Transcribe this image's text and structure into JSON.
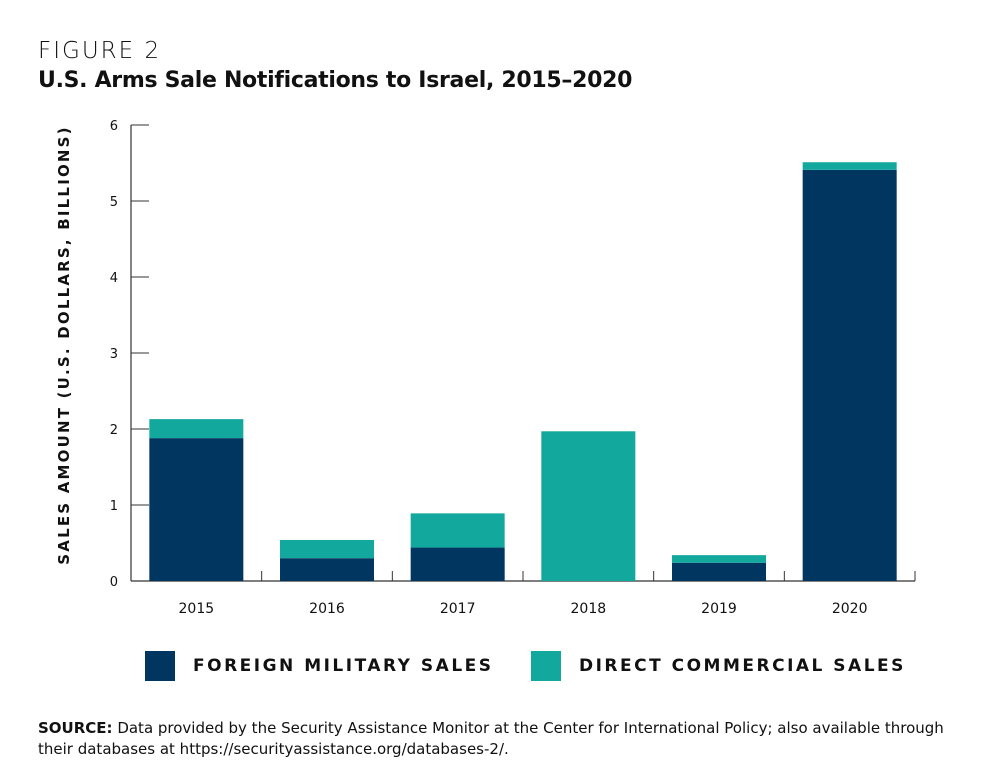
{
  "figure_label": "FIGURE 2",
  "chart_data": {
    "type": "bar",
    "stacked": true,
    "title": "U.S. Arms Sale Notifications to Israel, 2015–2020",
    "xlabel": "",
    "ylabel": "SALES AMOUNT (U.S. DOLLARS, BILLIONS)",
    "ylim": [
      0,
      6
    ],
    "yticks": [
      "0",
      "1",
      "2",
      "3",
      "4",
      "5",
      "6"
    ],
    "categories": [
      "2015",
      "2016",
      "2017",
      "2018",
      "2019",
      "2020"
    ],
    "series": [
      {
        "name": "FOREIGN MILITARY SALES",
        "color": "#003660",
        "values": [
          1.88,
          0.3,
          0.44,
          0,
          0.24,
          5.41
        ]
      },
      {
        "name": "DIRECT COMMERCIAL SALES",
        "color": "#13a89e",
        "values": [
          0.25,
          0.24,
          0.45,
          1.97,
          0.1,
          0.1
        ]
      }
    ],
    "grid": false,
    "legend": "bottom"
  },
  "source": {
    "label": "SOURCE:",
    "text": " Data provided by the Security Assistance Monitor at the Center for International Policy; also available through their databases at https://securityassistance.org/databases-2/."
  }
}
